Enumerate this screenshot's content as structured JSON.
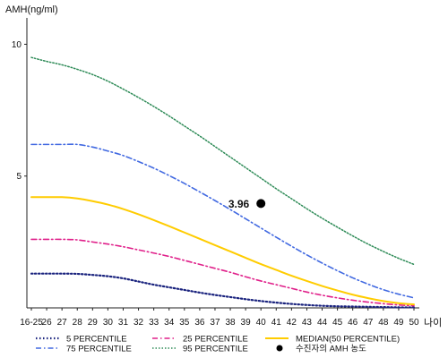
{
  "chart_data": {
    "type": "line",
    "ylabel": "AMH(ng/ml)",
    "xlabel": "나이",
    "ylim": [
      0,
      11
    ],
    "yticks": [
      5,
      10
    ],
    "categories": [
      "16-25",
      "26",
      "27",
      "28",
      "29",
      "30",
      "31",
      "32",
      "33",
      "34",
      "35",
      "36",
      "37",
      "38",
      "39",
      "40",
      "41",
      "42",
      "43",
      "44",
      "45",
      "46",
      "47",
      "48",
      "49",
      "50"
    ],
    "series": [
      {
        "name": "5 PERCENTILE",
        "color": "#1a237e",
        "dash": "1.5,2.5",
        "width": 2.2,
        "values": [
          1.3,
          1.3,
          1.3,
          1.29,
          1.25,
          1.2,
          1.12,
          1.0,
          0.88,
          0.78,
          0.68,
          0.58,
          0.49,
          0.41,
          0.33,
          0.26,
          0.2,
          0.15,
          0.11,
          0.08,
          0.06,
          0.05,
          0.04,
          0.03,
          0.02,
          0.02
        ]
      },
      {
        "name": "25 PERCENTILE",
        "color": "#e0208a",
        "dash": "6,3,1.5,3",
        "width": 1.6,
        "values": [
          2.6,
          2.6,
          2.6,
          2.58,
          2.5,
          2.42,
          2.32,
          2.2,
          2.08,
          1.95,
          1.8,
          1.65,
          1.5,
          1.35,
          1.18,
          1.02,
          0.88,
          0.74,
          0.6,
          0.48,
          0.38,
          0.29,
          0.22,
          0.16,
          0.11,
          0.08
        ]
      },
      {
        "name": "MEDIAN(50 PERCENTILE)",
        "color": "#ffcc00",
        "dash": "",
        "width": 2,
        "values": [
          4.2,
          4.2,
          4.2,
          4.15,
          4.05,
          3.92,
          3.75,
          3.55,
          3.33,
          3.1,
          2.86,
          2.62,
          2.38,
          2.14,
          1.9,
          1.66,
          1.44,
          1.22,
          1.02,
          0.83,
          0.66,
          0.5,
          0.37,
          0.26,
          0.18,
          0.13
        ]
      },
      {
        "name": "75 PERCENTILE",
        "color": "#4169e1",
        "dash": "6,3,1.5,3",
        "width": 1.6,
        "values": [
          6.2,
          6.2,
          6.2,
          6.2,
          6.1,
          5.95,
          5.78,
          5.55,
          5.3,
          5.02,
          4.72,
          4.4,
          4.07,
          3.73,
          3.38,
          3.03,
          2.68,
          2.34,
          2.01,
          1.7,
          1.41,
          1.14,
          0.9,
          0.69,
          0.52,
          0.38
        ]
      },
      {
        "name": "95 PERCENTILE",
        "color": "#2e8b57",
        "dash": "1.5,2",
        "width": 1.5,
        "values": [
          9.5,
          9.35,
          9.22,
          9.05,
          8.85,
          8.6,
          8.3,
          7.98,
          7.64,
          7.28,
          6.9,
          6.52,
          6.12,
          5.72,
          5.32,
          4.92,
          4.52,
          4.14,
          3.76,
          3.4,
          3.06,
          2.73,
          2.42,
          2.14,
          1.88,
          1.65
        ]
      }
    ],
    "point": {
      "label": "수진자의 AMH 농도",
      "x": "40",
      "y": 3.96,
      "text": "3.96",
      "color": "#000000"
    }
  }
}
